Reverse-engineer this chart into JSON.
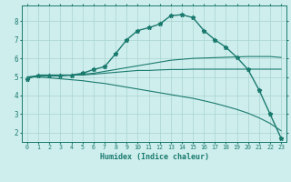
{
  "xlabel": "Humidex (Indice chaleur)",
  "background_color": "#ceeeed",
  "grid_color": "#aad4d0",
  "line_color": "#1a7a6e",
  "xlim": [
    -0.5,
    23.5
  ],
  "ylim": [
    1.5,
    8.85
  ],
  "yticks": [
    2,
    3,
    4,
    5,
    6,
    7,
    8
  ],
  "xticks": [
    0,
    1,
    2,
    3,
    4,
    5,
    6,
    7,
    8,
    9,
    10,
    11,
    12,
    13,
    14,
    15,
    16,
    17,
    18,
    19,
    20,
    21,
    22,
    23
  ],
  "series": [
    {
      "x": [
        0,
        1,
        2,
        3,
        4,
        5,
        6,
        7,
        8,
        9,
        10,
        11,
        12,
        13,
        14,
        15,
        16,
        17,
        18,
        19,
        20,
        21,
        22,
        23
      ],
      "y": [
        4.9,
        5.1,
        5.1,
        5.1,
        5.1,
        5.2,
        5.4,
        5.55,
        6.25,
        7.0,
        7.5,
        7.65,
        7.85,
        8.3,
        8.35,
        8.2,
        7.5,
        7.0,
        6.6,
        6.05,
        5.4,
        4.3,
        3.0,
        1.7
      ],
      "marker": "*",
      "linewidth": 1.0,
      "markersize": 3.5
    },
    {
      "x": [
        0,
        1,
        2,
        3,
        4,
        5,
        6,
        7,
        8,
        9,
        10,
        11,
        12,
        13,
        14,
        15,
        16,
        17,
        18,
        19,
        20,
        21,
        22,
        23
      ],
      "y": [
        5.0,
        5.05,
        5.05,
        5.05,
        5.1,
        5.1,
        5.15,
        5.2,
        5.25,
        5.3,
        5.35,
        5.35,
        5.38,
        5.4,
        5.4,
        5.42,
        5.42,
        5.42,
        5.42,
        5.42,
        5.42,
        5.42,
        5.42,
        5.42
      ],
      "marker": null,
      "linewidth": 0.8
    },
    {
      "x": [
        0,
        1,
        2,
        3,
        4,
        5,
        6,
        7,
        8,
        9,
        10,
        11,
        12,
        13,
        14,
        15,
        16,
        17,
        18,
        19,
        20,
        21,
        22,
        23
      ],
      "y": [
        5.0,
        5.05,
        5.1,
        5.1,
        5.1,
        5.15,
        5.2,
        5.3,
        5.4,
        5.5,
        5.6,
        5.7,
        5.8,
        5.9,
        5.95,
        6.0,
        6.02,
        6.04,
        6.06,
        6.08,
        6.1,
        6.1,
        6.1,
        6.05
      ],
      "marker": null,
      "linewidth": 0.8
    },
    {
      "x": [
        0,
        1,
        2,
        3,
        4,
        5,
        6,
        7,
        8,
        9,
        10,
        11,
        12,
        13,
        14,
        15,
        16,
        17,
        18,
        19,
        20,
        21,
        22,
        23
      ],
      "y": [
        5.0,
        5.0,
        4.95,
        4.9,
        4.85,
        4.8,
        4.72,
        4.65,
        4.55,
        4.45,
        4.35,
        4.25,
        4.15,
        4.05,
        3.95,
        3.85,
        3.72,
        3.58,
        3.42,
        3.25,
        3.05,
        2.8,
        2.5,
        2.1
      ],
      "marker": null,
      "linewidth": 0.8
    }
  ]
}
